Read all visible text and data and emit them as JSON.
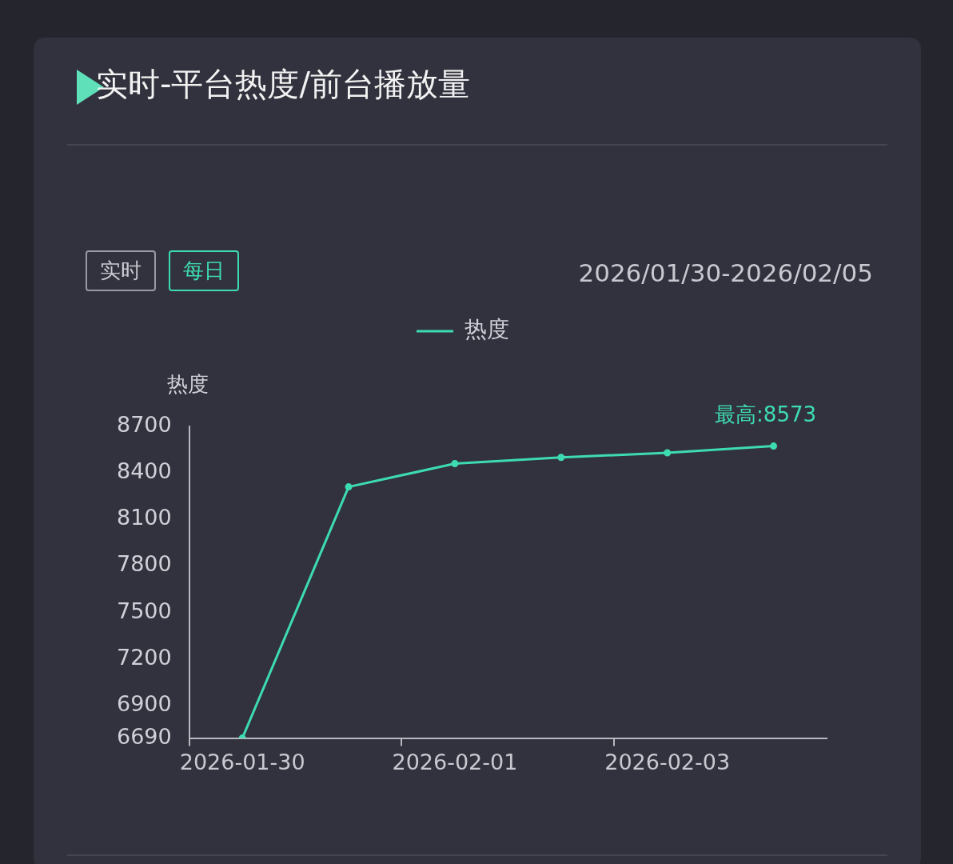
{
  "chart_data": {
    "type": "line",
    "title": "实时-平台热度/前台播放量",
    "subtitle": "2026/01/30-2026/02/05",
    "ylabel": "热度",
    "categories": [
      "2026-01-30",
      null,
      "2026-02-01",
      null,
      "2026-02-03",
      null
    ],
    "series": [
      {
        "name": "热度",
        "color": "#3ddcb0",
        "values": [
          6690,
          8310,
          8460,
          8500,
          8530,
          8573
        ]
      }
    ],
    "ylim": [
      6690,
      8700
    ],
    "yticks": [
      6690,
      6900,
      7200,
      7500,
      7800,
      8100,
      8400,
      8700
    ],
    "grid": false,
    "legend": "top",
    "marker": "circle",
    "line_style": "solid",
    "annotations": [
      "实时",
      "每日",
      {
        "text": "最高:8573",
        "y": 8573
      }
    ]
  }
}
